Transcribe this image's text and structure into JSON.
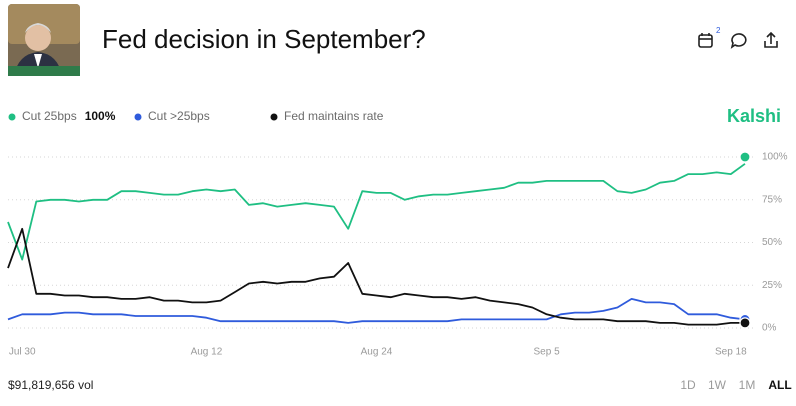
{
  "header": {
    "title": "Fed decision in September?",
    "calendar_badge": "2",
    "brand": "Kalshi"
  },
  "chart_data": {
    "type": "line",
    "x": [
      "Jul 29",
      "Jul 30",
      "Jul 31",
      "Aug 1",
      "Aug 2",
      "Aug 3",
      "Aug 4",
      "Aug 5",
      "Aug 6",
      "Aug 7",
      "Aug 8",
      "Aug 9",
      "Aug 10",
      "Aug 11",
      "Aug 12",
      "Aug 13",
      "Aug 14",
      "Aug 15",
      "Aug 16",
      "Aug 17",
      "Aug 18",
      "Aug 19",
      "Aug 20",
      "Aug 21",
      "Aug 22",
      "Aug 23",
      "Aug 24",
      "Aug 25",
      "Aug 26",
      "Aug 27",
      "Aug 28",
      "Aug 29",
      "Aug 30",
      "Aug 31",
      "Sep 1",
      "Sep 2",
      "Sep 3",
      "Sep 4",
      "Sep 5",
      "Sep 6",
      "Sep 7",
      "Sep 8",
      "Sep 9",
      "Sep 10",
      "Sep 11",
      "Sep 12",
      "Sep 13",
      "Sep 14",
      "Sep 15",
      "Sep 16",
      "Sep 17",
      "Sep 18",
      "Sep 19"
    ],
    "xlim": [
      "Jul 29",
      "Sep 19"
    ],
    "xticks": [
      "Jul 30",
      "Aug 12",
      "Aug 24",
      "Sep 5",
      "Sep 18"
    ],
    "ylim": [
      0,
      100
    ],
    "yticks": [
      {
        "value": 0,
        "label": "0%"
      },
      {
        "value": 25,
        "label": "25%"
      },
      {
        "value": 50,
        "label": "50%"
      },
      {
        "value": 75,
        "label": "75%"
      },
      {
        "value": 100,
        "label": "100%"
      }
    ],
    "grid": true,
    "series": [
      {
        "name": "Cut 25bps",
        "color": "#1fbf83",
        "last_price": {
          "value": 100,
          "label": "100%"
        },
        "values": [
          62,
          40,
          74,
          75,
          75,
          74,
          75,
          75,
          80,
          80,
          79,
          78,
          78,
          80,
          81,
          80,
          81,
          72,
          73,
          71,
          72,
          73,
          72,
          71,
          58,
          80,
          79,
          79,
          75,
          77,
          78,
          78,
          79,
          80,
          81,
          82,
          85,
          85,
          86,
          86,
          86,
          86,
          86,
          80,
          79,
          81,
          85,
          86,
          90,
          90,
          91,
          90,
          96
        ]
      },
      {
        "name": "Cut >25bps",
        "color": "#2f5bdc",
        "values": [
          5,
          8,
          8,
          8,
          9,
          9,
          8,
          8,
          8,
          7,
          7,
          7,
          7,
          7,
          6,
          4,
          4,
          4,
          4,
          4,
          4,
          4,
          4,
          4,
          3,
          4,
          4,
          4,
          4,
          4,
          4,
          4,
          5,
          5,
          5,
          5,
          5,
          5,
          5,
          8,
          9,
          9,
          10,
          12,
          17,
          15,
          15,
          14,
          8,
          8,
          8,
          6,
          5
        ]
      },
      {
        "name": "Fed maintains rate",
        "color": "#111111",
        "values": [
          35,
          58,
          20,
          20,
          19,
          19,
          18,
          18,
          17,
          17,
          18,
          16,
          16,
          15,
          15,
          16,
          21,
          26,
          27,
          26,
          27,
          27,
          29,
          30,
          38,
          20,
          19,
          18,
          20,
          19,
          18,
          18,
          17,
          18,
          16,
          15,
          14,
          12,
          8,
          6,
          5,
          5,
          5,
          4,
          4,
          4,
          3,
          3,
          2,
          2,
          2,
          3,
          3
        ]
      }
    ]
  },
  "footer": {
    "volume": "$91,819,656 vol",
    "ranges": [
      "1D",
      "1W",
      "1M",
      "ALL"
    ]
  }
}
